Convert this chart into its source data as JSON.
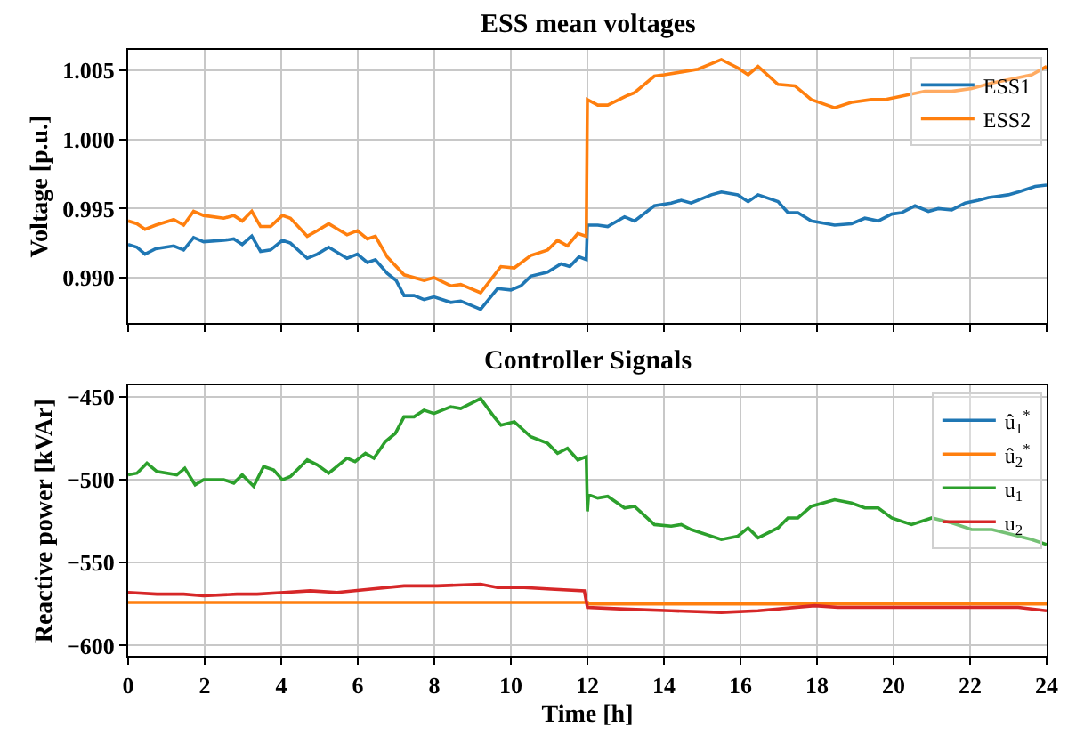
{
  "chart_data": [
    {
      "type": "line",
      "title": "ESS mean voltages",
      "ylabel": "Voltage [p.u.]",
      "xlim": [
        0,
        24
      ],
      "xticks": [
        0,
        2,
        4,
        6,
        8,
        10,
        12,
        14,
        16,
        18,
        20,
        22,
        24
      ],
      "ylim": [
        0.9867,
        1.0065
      ],
      "yticks": [
        {
          "value": 0.99,
          "label": "0.990"
        },
        0.995,
        {
          "value": 1.0,
          "label": "1.000"
        },
        1.005
      ],
      "grid": true,
      "legend": "top right",
      "tick_labels": "y",
      "series": [
        {
          "name": "ESS1",
          "color": "#1f77b4",
          "x": [
            0,
            0.23,
            0.44,
            0.72,
            1.19,
            1.45,
            1.71,
            1.97,
            2.5,
            2.76,
            2.98,
            3.23,
            3.46,
            3.72,
            4.03,
            4.24,
            4.68,
            4.94,
            5.24,
            5.72,
            5.99,
            6.25,
            6.46,
            6.77,
            7.0,
            7.21,
            7.47,
            7.73,
            7.99,
            8.43,
            8.69,
            8.95,
            9.21,
            9.65,
            10.0,
            10.26,
            10.52,
            10.96,
            11.31,
            11.54,
            11.78,
            11.97,
            12.0,
            12.27,
            12.53,
            12.97,
            13.23,
            13.75,
            14.19,
            14.45,
            14.71,
            15.24,
            15.5,
            15.93,
            16.2,
            16.46,
            16.98,
            17.24,
            17.5,
            17.85,
            18.46,
            18.9,
            19.25,
            19.6,
            19.95,
            20.21,
            20.56,
            20.91,
            21.17,
            21.52,
            21.87,
            22.22,
            22.48,
            22.74,
            23.0,
            23.26,
            23.7,
            24.0
          ],
          "values": [
            0.9924,
            0.9922,
            0.9917,
            0.9921,
            0.9923,
            0.992,
            0.9929,
            0.9926,
            0.9927,
            0.9928,
            0.9924,
            0.993,
            0.9919,
            0.992,
            0.9927,
            0.9925,
            0.9914,
            0.9917,
            0.9922,
            0.9914,
            0.9917,
            0.9911,
            0.9913,
            0.9903,
            0.9898,
            0.9887,
            0.9887,
            0.9884,
            0.9886,
            0.9882,
            0.9883,
            0.988,
            0.9877,
            0.9892,
            0.9891,
            0.9894,
            0.9901,
            0.9904,
            0.991,
            0.9908,
            0.9915,
            0.9913,
            0.9938,
            0.9938,
            0.9937,
            0.9944,
            0.9941,
            0.9952,
            0.9954,
            0.9956,
            0.9954,
            0.996,
            0.9962,
            0.996,
            0.9955,
            0.996,
            0.9955,
            0.9947,
            0.9947,
            0.9941,
            0.9938,
            0.9939,
            0.9943,
            0.9941,
            0.9946,
            0.9947,
            0.9952,
            0.9948,
            0.995,
            0.9949,
            0.9954,
            0.9956,
            0.9958,
            0.9959,
            0.996,
            0.9962,
            0.9966,
            0.9967
          ]
        },
        {
          "name": "ESS2",
          "color": "#ff7f0e",
          "x": [
            0,
            0.23,
            0.44,
            0.72,
            1.19,
            1.45,
            1.71,
            1.97,
            2.5,
            2.76,
            2.98,
            3.23,
            3.46,
            3.72,
            4.03,
            4.24,
            4.68,
            4.94,
            5.24,
            5.72,
            5.99,
            6.25,
            6.46,
            6.77,
            7.21,
            7.73,
            7.99,
            8.43,
            8.69,
            9.21,
            9.74,
            10.09,
            10.52,
            10.96,
            11.22,
            11.48,
            11.75,
            11.97,
            12.0,
            12.27,
            12.53,
            13.05,
            13.23,
            13.75,
            14.01,
            14.45,
            14.89,
            15.5,
            15.93,
            16.2,
            16.46,
            16.98,
            17.42,
            17.85,
            18.46,
            18.9,
            19.42,
            19.77,
            20.3,
            20.82,
            21.52,
            22.04,
            22.57,
            23.09,
            23.61,
            24.0
          ],
          "values": [
            0.9941,
            0.9939,
            0.9935,
            0.9938,
            0.9942,
            0.9938,
            0.9948,
            0.9945,
            0.9943,
            0.9945,
            0.9941,
            0.9948,
            0.9937,
            0.9937,
            0.9945,
            0.9943,
            0.993,
            0.9934,
            0.9939,
            0.9931,
            0.9934,
            0.9928,
            0.993,
            0.9915,
            0.9902,
            0.9898,
            0.99,
            0.9894,
            0.9895,
            0.9889,
            0.9908,
            0.9907,
            0.9916,
            0.992,
            0.9927,
            0.9923,
            0.9932,
            0.993,
            1.0029,
            1.0025,
            1.0025,
            1.0032,
            1.0034,
            1.0046,
            1.0047,
            1.0049,
            1.0051,
            1.0058,
            1.0052,
            1.0047,
            1.0053,
            1.004,
            1.0039,
            1.0029,
            1.0023,
            1.0027,
            1.0029,
            1.0029,
            1.0032,
            1.0035,
            1.0035,
            1.0037,
            1.0041,
            1.0044,
            1.0047,
            1.0053
          ]
        }
      ]
    },
    {
      "type": "line",
      "title": "Controller Signals",
      "xlabel": "Time [h]",
      "ylabel": "Reactive power [kVAr]",
      "xlim": [
        0,
        24
      ],
      "xticks": [
        0,
        2,
        4,
        6,
        8,
        10,
        12,
        14,
        16,
        18,
        20,
        22,
        24
      ],
      "ylim": [
        -606.5,
        -443
      ],
      "yticks": [
        {
          "value": -450,
          "label": "−450"
        },
        {
          "value": -500,
          "label": "−500"
        },
        {
          "value": -550,
          "label": "−550"
        },
        {
          "value": -600,
          "label": "−600"
        }
      ],
      "grid": true,
      "legend": "top right",
      "series": [
        {
          "name": "û$_{1}$$^{*}$",
          "color": "#1f77b4"
        },
        {
          "name": "û$_{2}$$^{*}$",
          "color": "#ff7f0e",
          "x": [
            0,
            12,
            12,
            24
          ],
          "values": [
            -574,
            -574,
            -575,
            -575
          ]
        },
        {
          "name": "u$_{1}$",
          "color": "#2ca02c",
          "x": [
            0,
            0.23,
            0.49,
            0.75,
            1.27,
            1.48,
            1.75,
            1.97,
            2.5,
            2.76,
            2.98,
            3.28,
            3.54,
            3.8,
            4.03,
            4.24,
            4.68,
            4.94,
            5.24,
            5.72,
            5.93,
            6.2,
            6.42,
            6.72,
            6.98,
            7.21,
            7.47,
            7.73,
            7.99,
            8.43,
            8.69,
            9.21,
            9.56,
            9.74,
            10.09,
            10.52,
            10.96,
            11.22,
            11.48,
            11.75,
            11.97,
            12.0,
            12.03,
            12.27,
            12.53,
            12.97,
            13.23,
            13.75,
            14.19,
            14.45,
            14.71,
            15.5,
            15.93,
            16.2,
            16.46,
            16.98,
            17.24,
            17.5,
            17.85,
            18.46,
            18.9,
            19.25,
            19.6,
            19.95,
            20.47,
            21.0,
            21.52,
            22.04,
            22.57,
            23.09,
            23.61,
            24.0
          ],
          "values": [
            -497,
            -496,
            -490,
            -495,
            -497,
            -493,
            -503,
            -500,
            -500,
            -502,
            -497,
            -504,
            -492,
            -494,
            -500,
            -498,
            -488,
            -491,
            -496,
            -487,
            -489,
            -484,
            -487,
            -477,
            -472,
            -462,
            -462,
            -458,
            -460,
            -456,
            -457,
            -451,
            -462,
            -467,
            -465,
            -474,
            -478,
            -484,
            -481,
            -488,
            -486,
            -519,
            -509,
            -511,
            -510,
            -517,
            -516,
            -527,
            -528,
            -527,
            -530,
            -536,
            -534,
            -529,
            -535,
            -529,
            -523,
            -523,
            -516,
            -512,
            -514,
            -517,
            -517,
            -523,
            -527,
            -523,
            -526,
            -530,
            -530,
            -533,
            -536,
            -539
          ]
        },
        {
          "name": "u$_{2}$",
          "color": "#d62728",
          "x": [
            0,
            0.75,
            1.45,
            1.97,
            2.84,
            3.37,
            4.07,
            4.76,
            5.46,
            6.34,
            7.21,
            8.08,
            9.21,
            9.65,
            10.35,
            11.05,
            11.92,
            12.0,
            12.97,
            14.19,
            15.5,
            16.46,
            17.94,
            18.55,
            20.3,
            22.04,
            23.26,
            24.0
          ],
          "values": [
            -568,
            -569,
            -569,
            -570,
            -569,
            -569,
            -568,
            -567,
            -568,
            -566,
            -564,
            -564,
            -563,
            -565,
            -565,
            -566,
            -567,
            -577,
            -578,
            -579,
            -580,
            -579,
            -576,
            -577,
            -577,
            -577,
            -577,
            -579
          ]
        }
      ]
    }
  ]
}
